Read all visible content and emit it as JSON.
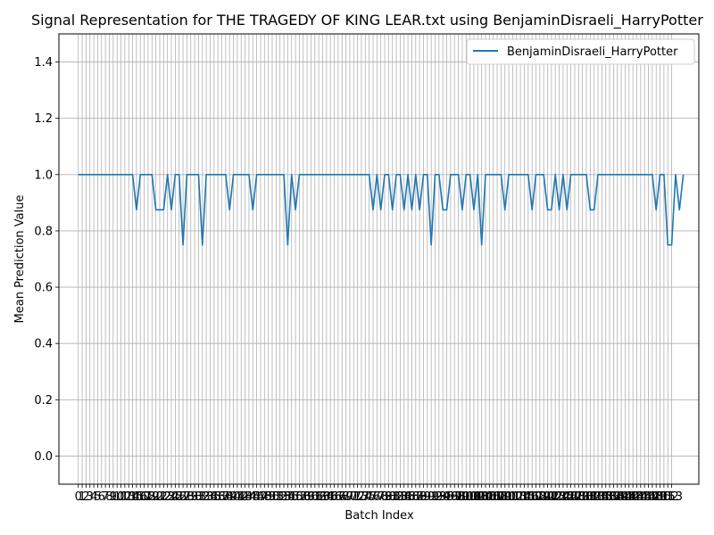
{
  "chart_data": {
    "type": "line",
    "title": "Signal Representation for THE TRAGEDY OF KING LEAR.txt using BenjaminDisraeli_HarryPotter",
    "xlabel": "Batch Index",
    "ylabel": "Mean Prediction Value",
    "xlim": [
      -5,
      160
    ],
    "ylim": [
      -0.1,
      1.5
    ],
    "yticks": [
      0.0,
      0.2,
      0.4,
      0.6,
      0.8,
      1.0,
      1.2,
      1.4
    ],
    "x_tick_range": [
      0,
      153
    ],
    "grid": true,
    "legend_position": "top-right",
    "series": [
      {
        "name": "BenjaminDisraeli_HarryPotter",
        "color": "#1f77b4",
        "x_start": 0,
        "values": [
          1,
          1,
          1,
          1,
          1,
          1,
          1,
          1,
          1,
          1,
          1,
          1,
          1,
          1,
          1,
          0.875,
          1,
          1,
          1,
          1,
          0.875,
          0.875,
          0.875,
          1,
          0.875,
          1,
          1,
          0.75,
          1,
          1,
          1,
          1,
          0.75,
          1,
          1,
          1,
          1,
          1,
          1,
          0.875,
          1,
          1,
          1,
          1,
          1,
          0.875,
          1,
          1,
          1,
          1,
          1,
          1,
          1,
          1,
          0.75,
          1,
          0.875,
          1,
          1,
          1,
          1,
          1,
          1,
          1,
          1,
          1,
          1,
          1,
          1,
          1,
          1,
          1,
          1,
          1,
          1,
          1,
          0.875,
          1,
          0.875,
          1,
          1,
          0.875,
          1,
          1,
          0.875,
          1,
          0.875,
          1,
          0.875,
          1,
          1,
          0.75,
          1,
          1,
          0.875,
          0.875,
          1,
          1,
          1,
          0.875,
          1,
          1,
          0.875,
          1,
          0.75,
          1,
          1,
          1,
          1,
          1,
          0.875,
          1,
          1,
          1,
          1,
          1,
          1,
          0.875,
          1,
          1,
          1,
          0.875,
          0.875,
          1,
          0.875,
          1,
          0.875,
          1,
          1,
          1,
          1,
          1,
          0.875,
          0.875,
          1,
          1,
          1,
          1,
          1,
          1,
          1,
          1,
          1,
          1,
          1,
          1,
          1,
          1,
          1,
          0.875,
          1,
          1,
          0.75,
          0.75,
          1,
          0.875,
          1
        ]
      }
    ]
  }
}
